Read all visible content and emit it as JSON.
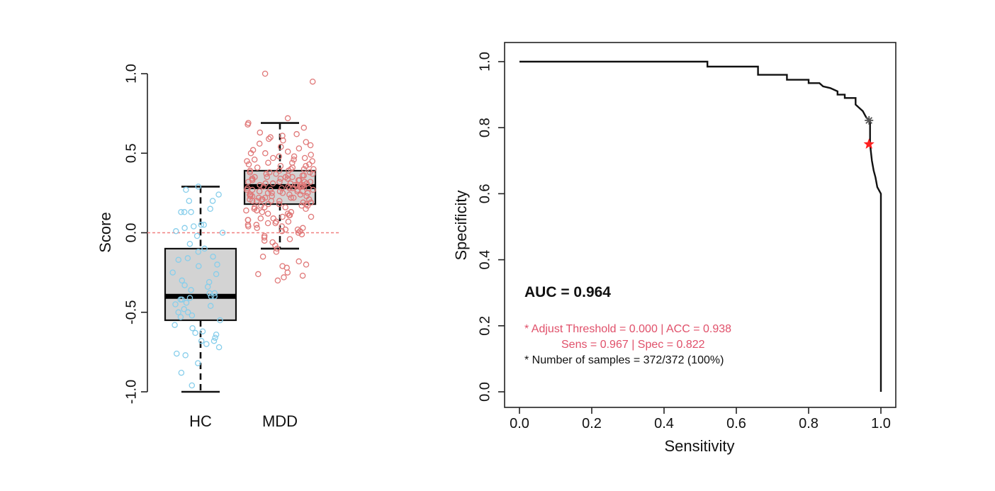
{
  "chart_data": [
    {
      "type": "boxplot",
      "ylabel": "Score",
      "ylim": [
        -1.0,
        1.0
      ],
      "yticks": [
        -1.0,
        -0.5,
        0.0,
        0.5,
        1.0
      ],
      "ytick_labels": [
        "-1.0",
        "-0.5",
        "0.0",
        "0.5",
        "1.0"
      ],
      "reference_line": 0.0,
      "reference_line_color": "#f08080",
      "groups": [
        {
          "name": "HC",
          "color": "#87ceeb",
          "box": {
            "whisker_low": -1.0,
            "q1": -0.55,
            "median": -0.4,
            "q3": -0.1,
            "whisker_high": 0.29
          },
          "points": [
            0.27,
            0.24,
            0.29,
            0.2,
            0.2,
            0.13,
            0.15,
            0.13,
            0.13,
            0.05,
            0.05,
            0.04,
            0.03,
            0.01,
            0.0,
            -0.02,
            -0.07,
            -0.1,
            -0.12,
            -0.15,
            -0.16,
            -0.17,
            -0.2,
            -0.21,
            -0.25,
            -0.26,
            -0.3,
            -0.31,
            -0.33,
            -0.34,
            -0.36,
            -0.38,
            -0.38,
            -0.4,
            -0.4,
            -0.41,
            -0.42,
            -0.42,
            -0.44,
            -0.45,
            -0.46,
            -0.48,
            -0.5,
            -0.5,
            -0.52,
            -0.53,
            -0.55,
            -0.58,
            -0.6,
            -0.62,
            -0.63,
            -0.64,
            -0.66,
            -0.68,
            -0.68,
            -0.7,
            -0.72,
            -0.76,
            -0.77,
            -0.82,
            -0.88,
            -0.96
          ]
        },
        {
          "name": "MDD",
          "color": "#e07878",
          "box": {
            "whisker_low": -0.1,
            "q1": 0.18,
            "median": 0.29,
            "q3": 0.39,
            "whisker_high": 0.69
          },
          "points": [
            1.0,
            0.95,
            0.72,
            0.69,
            0.68,
            0.66,
            0.63,
            0.62,
            0.61,
            0.6,
            0.59,
            0.58,
            0.57,
            0.56,
            0.55,
            0.54,
            0.53,
            0.52,
            0.51,
            0.5,
            0.5,
            0.49,
            0.48,
            0.48,
            0.47,
            0.47,
            0.46,
            0.46,
            0.45,
            0.45,
            0.44,
            0.44,
            0.43,
            0.43,
            0.42,
            0.42,
            0.41,
            0.41,
            0.4,
            0.4,
            0.4,
            0.39,
            0.39,
            0.39,
            0.38,
            0.38,
            0.38,
            0.37,
            0.37,
            0.37,
            0.36,
            0.36,
            0.36,
            0.35,
            0.35,
            0.35,
            0.35,
            0.34,
            0.34,
            0.34,
            0.34,
            0.33,
            0.33,
            0.33,
            0.33,
            0.32,
            0.32,
            0.32,
            0.32,
            0.31,
            0.31,
            0.31,
            0.31,
            0.3,
            0.3,
            0.3,
            0.3,
            0.3,
            0.29,
            0.29,
            0.29,
            0.29,
            0.29,
            0.28,
            0.28,
            0.28,
            0.28,
            0.28,
            0.27,
            0.27,
            0.27,
            0.27,
            0.27,
            0.26,
            0.26,
            0.26,
            0.26,
            0.25,
            0.25,
            0.25,
            0.25,
            0.24,
            0.24,
            0.24,
            0.24,
            0.23,
            0.23,
            0.23,
            0.23,
            0.22,
            0.22,
            0.22,
            0.22,
            0.21,
            0.21,
            0.21,
            0.21,
            0.2,
            0.2,
            0.2,
            0.2,
            0.19,
            0.19,
            0.19,
            0.18,
            0.18,
            0.18,
            0.17,
            0.17,
            0.17,
            0.16,
            0.16,
            0.16,
            0.15,
            0.15,
            0.14,
            0.14,
            0.13,
            0.13,
            0.12,
            0.12,
            0.11,
            0.11,
            0.1,
            0.1,
            0.09,
            0.09,
            0.08,
            0.08,
            0.07,
            0.07,
            0.06,
            0.06,
            0.05,
            0.05,
            0.04,
            0.04,
            0.03,
            0.03,
            0.02,
            0.02,
            0.01,
            0.01,
            0.0,
            -0.01,
            -0.02,
            -0.03,
            -0.04,
            -0.05,
            -0.06,
            -0.08,
            -0.1,
            -0.12,
            -0.15,
            -0.18,
            -0.2,
            -0.21,
            -0.22,
            -0.25,
            -0.26,
            -0.27,
            -0.28,
            -0.3
          ]
        }
      ]
    },
    {
      "type": "line",
      "xlabel": "Sensitivity",
      "ylabel": "Specificity",
      "xlim": [
        0.0,
        1.0
      ],
      "ylim": [
        0.0,
        1.0
      ],
      "xticks": [
        0.0,
        0.2,
        0.4,
        0.6,
        0.8,
        1.0
      ],
      "xtick_labels": [
        "0.0",
        "0.2",
        "0.4",
        "0.6",
        "0.8",
        "1.0"
      ],
      "yticks": [
        0.0,
        0.2,
        0.4,
        0.6,
        0.8,
        1.0
      ],
      "ytick_labels": [
        "0.0",
        "0.2",
        "0.4",
        "0.6",
        "0.8",
        "1.0"
      ],
      "series": [
        {
          "color": "#111111",
          "x": [
            0.0,
            0.52,
            0.52,
            0.66,
            0.66,
            0.74,
            0.74,
            0.8,
            0.8,
            0.83,
            0.84,
            0.86,
            0.88,
            0.88,
            0.9,
            0.9,
            0.93,
            0.93,
            0.95,
            0.955,
            0.96,
            0.97,
            0.97,
            0.975,
            0.98,
            0.985,
            0.99,
            1.0,
            1.0
          ],
          "y": [
            1.0,
            1.0,
            0.985,
            0.985,
            0.96,
            0.96,
            0.945,
            0.945,
            0.935,
            0.935,
            0.925,
            0.92,
            0.91,
            0.9,
            0.9,
            0.89,
            0.89,
            0.87,
            0.85,
            0.84,
            0.83,
            0.82,
            0.75,
            0.7,
            0.67,
            0.65,
            0.62,
            0.6,
            0.0
          ]
        }
      ],
      "markers": [
        {
          "x": 0.967,
          "y": 0.822,
          "color": "#555555",
          "shape": "asterisk"
        },
        {
          "x": 0.967,
          "y": 0.75,
          "color": "#ff2020",
          "shape": "star"
        }
      ],
      "annotations": {
        "auc": "AUC = 0.964",
        "threshold_line": "* Adjust Threshold = 0.000 | ACC = 0.938",
        "sens_spec_line": "Sens = 0.967 | Spec = 0.822",
        "samples_line": "* Number of samples = 372/372 (100%)",
        "accent_color": "#e0506a"
      }
    }
  ]
}
